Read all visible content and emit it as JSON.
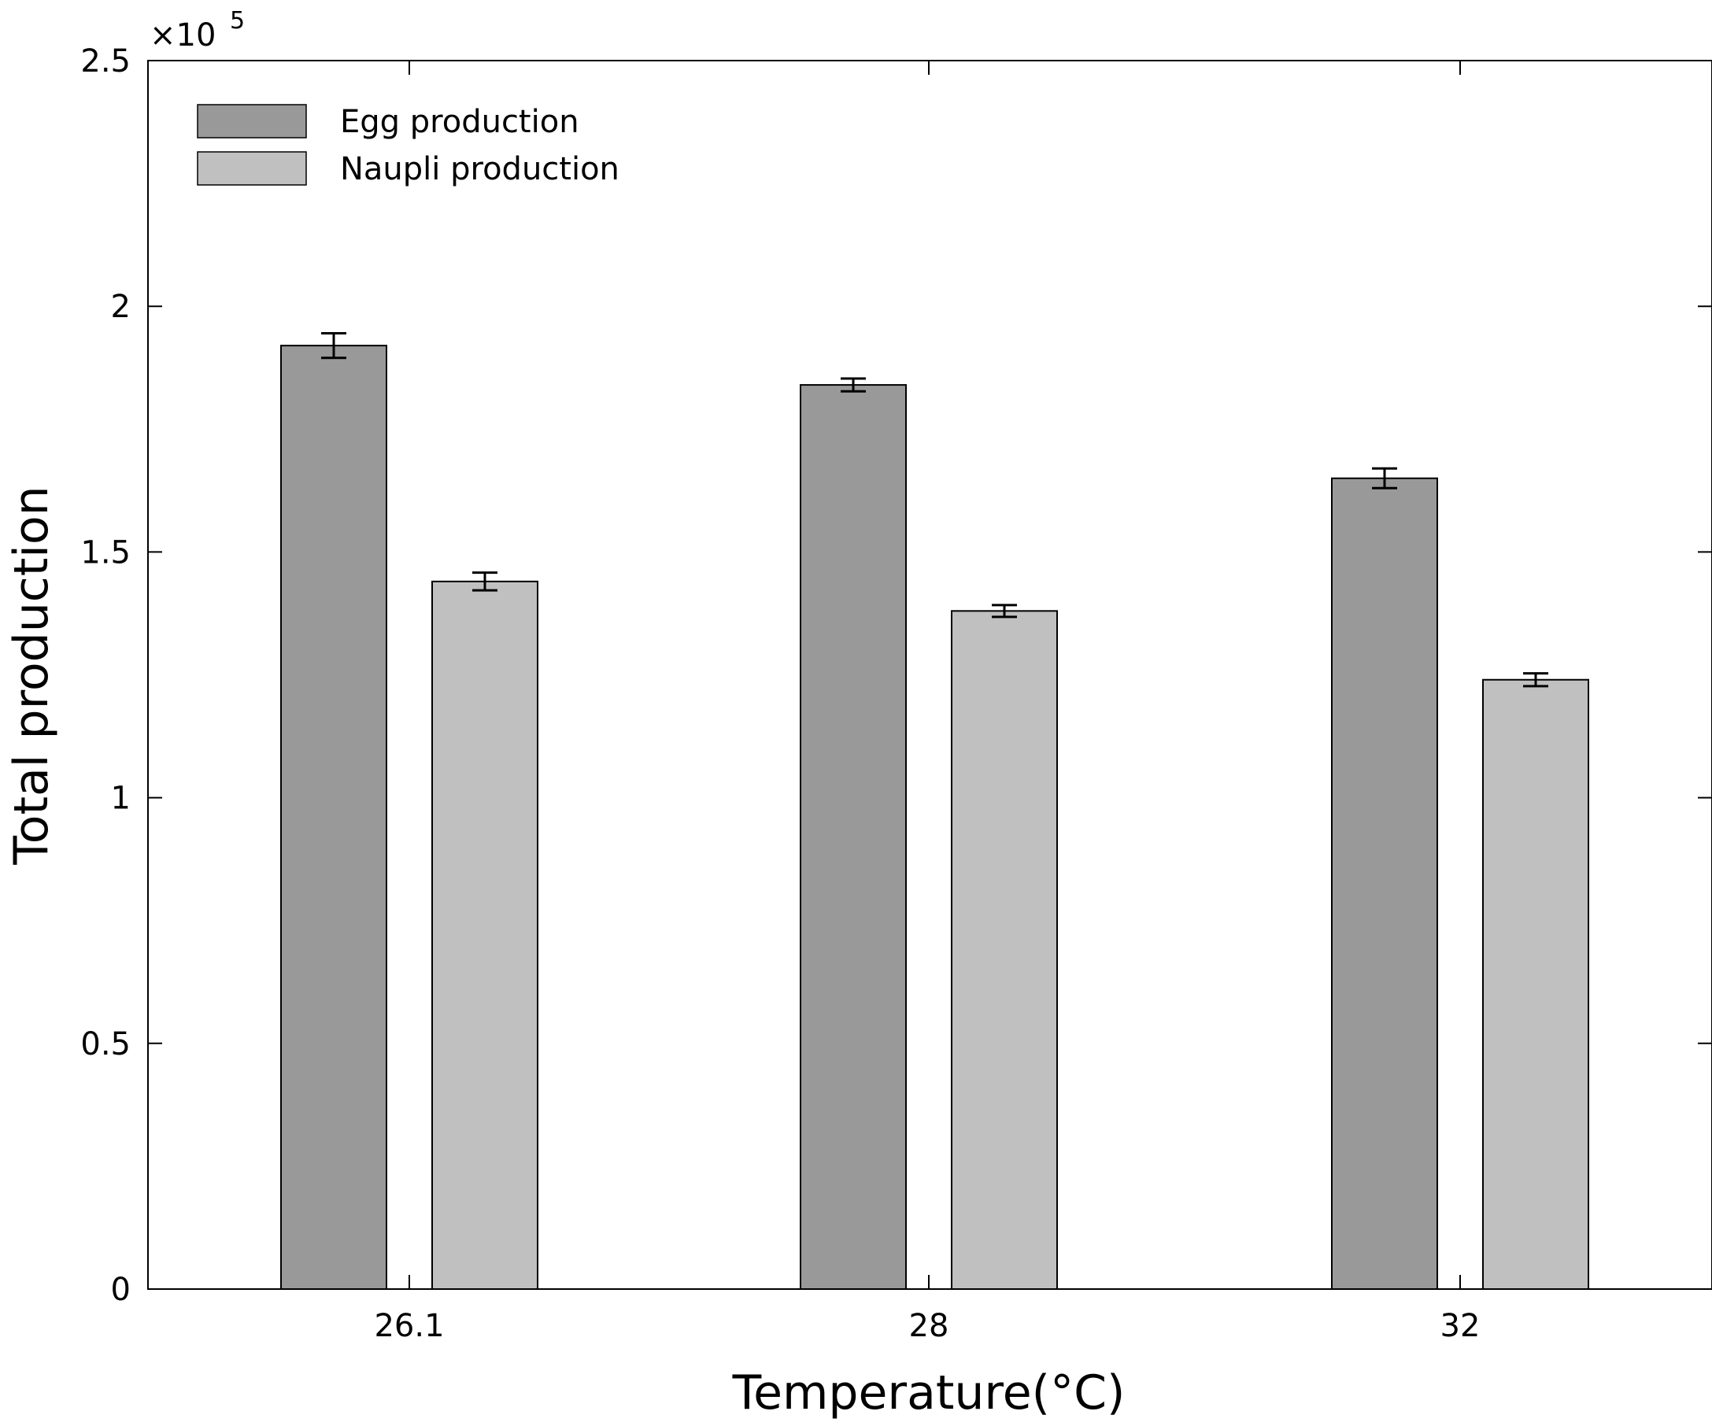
{
  "chart_data": {
    "type": "bar",
    "title": "",
    "xlabel": "Temperature(°C)",
    "ylabel": "Total production",
    "categories": [
      "26.1",
      "28",
      "32"
    ],
    "ylim": [
      0,
      2.5
    ],
    "yticks": [
      "0",
      "0.5",
      "1",
      "1.5",
      "2",
      "2.5"
    ],
    "y_multiplier": {
      "prefix": "×10",
      "exponent": "5"
    },
    "grid": false,
    "legend_position": "top-left",
    "series": [
      {
        "name": "Egg production",
        "color": "#999999",
        "values": [
          1.92,
          1.84,
          1.65
        ],
        "errors": [
          0.025,
          0.013,
          0.02
        ]
      },
      {
        "name": "Naupli production",
        "color": "#c0c0c0",
        "values": [
          1.44,
          1.38,
          1.24
        ],
        "errors": [
          0.018,
          0.012,
          0.013
        ]
      }
    ]
  }
}
